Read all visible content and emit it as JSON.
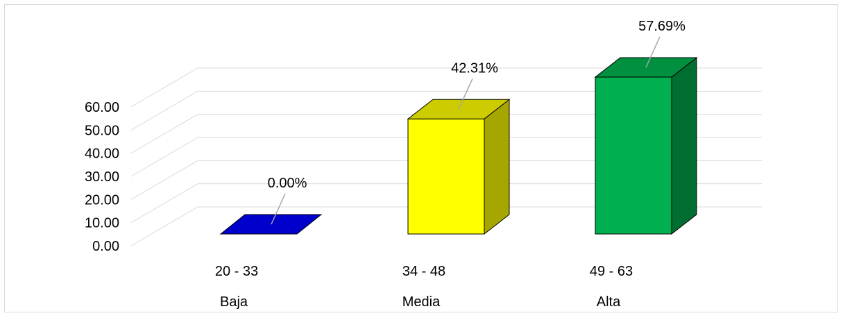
{
  "chart_data": {
    "type": "bar",
    "style": "3d-column",
    "categories": [
      "Baja",
      "Media",
      "Alta"
    ],
    "ranges": [
      "20  -  33",
      "34 - 48",
      "49 - 63"
    ],
    "values": [
      0.0,
      42.31,
      57.69
    ],
    "data_labels": [
      "0.00%",
      "42.31%",
      "57.69%"
    ],
    "ylim": [
      0,
      60
    ],
    "yticks": [
      "0.00",
      "10.00",
      "20.00",
      "30.00",
      "40.00",
      "50.00",
      "60.00"
    ],
    "grid": true,
    "legend": "none",
    "colors": {
      "front": [
        "#0000cc",
        "#ffff00",
        "#00b050"
      ],
      "top": [
        "#0000cc",
        "#cccc00",
        "#00903f"
      ],
      "side": [
        "#00008f",
        "#a6a600",
        "#006e30"
      ],
      "grid": "#d9d9d9"
    }
  }
}
